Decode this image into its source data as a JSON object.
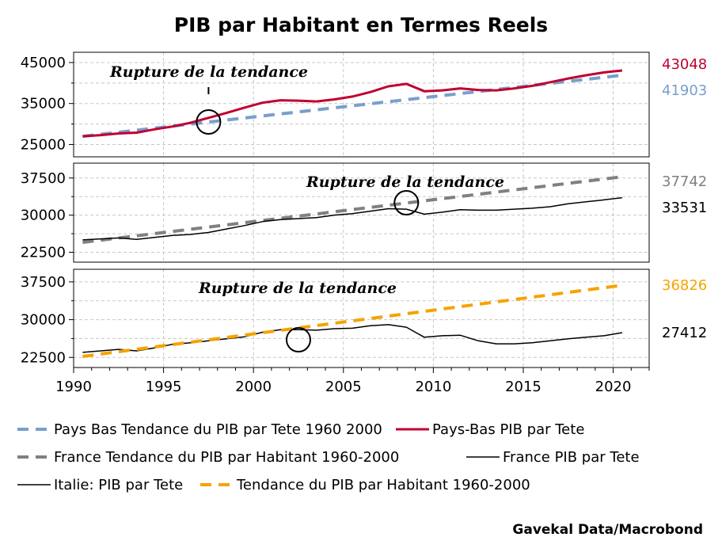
{
  "chart_data": {
    "type": "line",
    "title": "PIB par Habitant en Termes Reels",
    "source": "Gavekal Data/Macrobond",
    "x_range": [
      1990,
      2022
    ],
    "x_ticks": [
      "1990",
      "1995",
      "2000",
      "2005",
      "2010",
      "2015",
      "2020"
    ],
    "panels": [
      {
        "ylim": [
          22000,
          47500
        ],
        "y_ticks": [
          25000,
          35000,
          45000
        ],
        "y_tick_labels": [
          "25000",
          "35000",
          "45000"
        ],
        "annotation": {
          "text": "Rupture de la tendance",
          "x": 1997.5,
          "y": 30500
        },
        "series": [
          {
            "name": "Pays Bas Tendance du PIB par Tete 1960 2000",
            "color": "#789fcc",
            "dash": true,
            "width": 4,
            "end_label": "41903",
            "points": [
              [
                1990.5,
                27000
              ],
              [
                2020.5,
                41903
              ]
            ]
          },
          {
            "name": "Pays-Bas PIB par Tete",
            "color": "#c00030",
            "dash": false,
            "width": 3,
            "end_label": "43048",
            "points": [
              [
                1990.5,
                27000
              ],
              [
                1991.5,
                27300
              ],
              [
                1992.5,
                27700
              ],
              [
                1993.5,
                27900
              ],
              [
                1994.5,
                28700
              ],
              [
                1995.5,
                29400
              ],
              [
                1996.5,
                30300
              ],
              [
                1997.5,
                31500
              ],
              [
                1998.5,
                32700
              ],
              [
                1999.5,
                34000
              ],
              [
                2000.5,
                35200
              ],
              [
                2001.5,
                35800
              ],
              [
                2002.5,
                35700
              ],
              [
                2003.5,
                35500
              ],
              [
                2004.5,
                36000
              ],
              [
                2005.5,
                36700
              ],
              [
                2006.5,
                37800
              ],
              [
                2007.5,
                39200
              ],
              [
                2008.5,
                39800
              ],
              [
                2009.5,
                38000
              ],
              [
                2010.5,
                38200
              ],
              [
                2011.5,
                38700
              ],
              [
                2012.5,
                38300
              ],
              [
                2013.5,
                38200
              ],
              [
                2014.5,
                38700
              ],
              [
                2015.5,
                39300
              ],
              [
                2016.5,
                40200
              ],
              [
                2017.5,
                41100
              ],
              [
                2018.5,
                41900
              ],
              [
                2019.5,
                42600
              ],
              [
                2020.5,
                43048
              ]
            ]
          }
        ]
      },
      {
        "ylim": [
          20500,
          40500
        ],
        "y_ticks": [
          22500,
          30000,
          37500
        ],
        "y_tick_labels": [
          "22500",
          "30000",
          "37500"
        ],
        "annotation": {
          "text": "Rupture de la tendance",
          "x": 2008.5,
          "y": 32500
        },
        "series": [
          {
            "name": "France Tendance du PIB par Habitant 1960-2000",
            "color": "#808080",
            "dash": true,
            "width": 4,
            "end_label": "37742",
            "points": [
              [
                1990.5,
                24500
              ],
              [
                2020.5,
                37742
              ]
            ]
          },
          {
            "name": "France PIB par Tete",
            "color": "#000000",
            "dash": false,
            "width": 1.5,
            "end_label": "33531",
            "points": [
              [
                1990.5,
                25000
              ],
              [
                1991.5,
                25200
              ],
              [
                1992.5,
                25400
              ],
              [
                1993.5,
                25100
              ],
              [
                1994.5,
                25500
              ],
              [
                1995.5,
                25900
              ],
              [
                1996.5,
                26100
              ],
              [
                1997.5,
                26500
              ],
              [
                1998.5,
                27200
              ],
              [
                1999.5,
                27900
              ],
              [
                2000.5,
                28700
              ],
              [
                2001.5,
                29100
              ],
              [
                2002.5,
                29300
              ],
              [
                2003.5,
                29500
              ],
              [
                2004.5,
                30000
              ],
              [
                2005.5,
                30300
              ],
              [
                2006.5,
                30800
              ],
              [
                2007.5,
                31300
              ],
              [
                2008.5,
                31200
              ],
              [
                2009.5,
                30200
              ],
              [
                2010.5,
                30600
              ],
              [
                2011.5,
                31100
              ],
              [
                2012.5,
                31000
              ],
              [
                2013.5,
                31000
              ],
              [
                2014.5,
                31200
              ],
              [
                2015.5,
                31400
              ],
              [
                2016.5,
                31700
              ],
              [
                2017.5,
                32300
              ],
              [
                2018.5,
                32700
              ],
              [
                2019.5,
                33100
              ],
              [
                2020.5,
                33531
              ]
            ]
          }
        ]
      },
      {
        "ylim": [
          20500,
          40000
        ],
        "y_ticks": [
          22500,
          30000,
          37500
        ],
        "y_tick_labels": [
          "22500",
          "30000",
          "37500"
        ],
        "annotation": {
          "text": "Rupture de la tendance",
          "x": 2002.5,
          "y": 26000
        },
        "series": [
          {
            "name": "Italie:  PIB par Tete",
            "color": "#000000",
            "dash": false,
            "width": 1.5,
            "end_label": "27412",
            "points": [
              [
                1990.5,
                23500
              ],
              [
                1991.5,
                23800
              ],
              [
                1992.5,
                24100
              ],
              [
                1993.5,
                23800
              ],
              [
                1994.5,
                24400
              ],
              [
                1995.5,
                25100
              ],
              [
                1996.5,
                25400
              ],
              [
                1997.5,
                25800
              ],
              [
                1998.5,
                26200
              ],
              [
                1999.5,
                26600
              ],
              [
                2000.5,
                27500
              ],
              [
                2001.5,
                28000
              ],
              [
                2002.5,
                28000
              ],
              [
                2003.5,
                27900
              ],
              [
                2004.5,
                28200
              ],
              [
                2005.5,
                28300
              ],
              [
                2006.5,
                28800
              ],
              [
                2007.5,
                29000
              ],
              [
                2008.5,
                28500
              ],
              [
                2009.5,
                26500
              ],
              [
                2010.5,
                26800
              ],
              [
                2011.5,
                26900
              ],
              [
                2012.5,
                25800
              ],
              [
                2013.5,
                25200
              ],
              [
                2014.5,
                25200
              ],
              [
                2015.5,
                25400
              ],
              [
                2016.5,
                25800
              ],
              [
                2017.5,
                26200
              ],
              [
                2018.5,
                26500
              ],
              [
                2019.5,
                26800
              ],
              [
                2020.5,
                27412
              ]
            ]
          },
          {
            "name": "Tendance du PIB par Habitant 1960-2000",
            "color": "#f5a300",
            "dash": true,
            "width": 4,
            "end_label": "36826",
            "points": [
              [
                1990.5,
                22700
              ],
              [
                2020.5,
                36826
              ]
            ]
          }
        ]
      }
    ],
    "end_label_colors": [
      "#c00030",
      "#789fcc",
      "#808080",
      "#000000",
      "#f5a300",
      "#c00030"
    ]
  },
  "legend": [
    {
      "label": "Pays Bas Tendance du PIB par Tete 1960 2000",
      "color": "#789fcc",
      "dash": true
    },
    {
      "label": "Pays-Bas PIB par Tete",
      "color": "#c00030",
      "dash": false
    },
    {
      "label": "France Tendance du PIB par Habitant 1960-2000",
      "color": "#808080",
      "dash": true
    },
    {
      "label": "France PIB par Tete",
      "color": "#000000",
      "dash": false
    },
    {
      "label": "Italie:  PIB par Tete",
      "color": "#000000",
      "dash": false
    },
    {
      "label": "Tendance du PIB par Habitant 1960-2000",
      "color": "#f5a300",
      "dash": true
    }
  ]
}
